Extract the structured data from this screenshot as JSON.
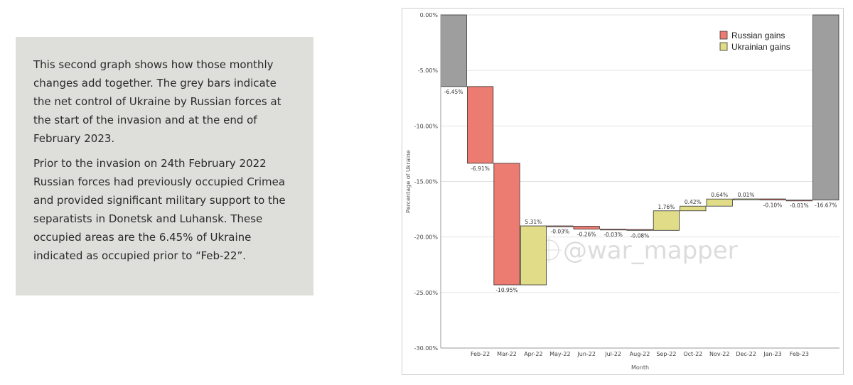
{
  "description": {
    "paragraph1": "This second graph shows how those monthly changes add together. The grey bars indicate the net control of Ukraine by Russian forces at the start of the invasion and at the end of February 2023.",
    "paragraph2": "Prior to the invasion on 24th February 2022 Russian forces had previously occupied Crimea and provided significant military support to the separatists in Donetsk and Luhansk. These occupied areas are the 6.45% of Ukraine indicated as occupied prior to “Feb-22”."
  },
  "chart_data": {
    "type": "bar",
    "subtype": "waterfall",
    "xlabel": "Month",
    "ylabel": "Percentage of Ukraine",
    "ylim": [
      -30,
      0
    ],
    "yticks": [
      "0.00%",
      "-5.00%",
      "-10.00%",
      "-15.00%",
      "-20.00%",
      "-25.00%",
      "-30.00%"
    ],
    "grid": true,
    "legend": {
      "placement": "top-right",
      "entries": [
        {
          "name": "Russian gains",
          "color": "#ec7b71"
        },
        {
          "name": "Ukrainian gains",
          "color": "#e0dc87"
        }
      ]
    },
    "watermark": "@war_mapper",
    "categories": [
      "",
      "Feb-22",
      "Mar-22",
      "Apr-22",
      "May-22",
      "Jun-22",
      "Jul-22",
      "Aug-22",
      "Sep-22",
      "Oct-22",
      "Nov-22",
      "Dec-22",
      "Jan-23",
      "Feb-23",
      ""
    ],
    "bars": [
      {
        "category": "",
        "kind": "total",
        "start": 0,
        "end": -6.45,
        "label": "-6.45%"
      },
      {
        "category": "Feb-22",
        "kind": "russian",
        "start": -6.45,
        "end": -13.36,
        "label": "-6.91%"
      },
      {
        "category": "Mar-22",
        "kind": "russian",
        "start": -13.36,
        "end": -24.31,
        "label": "-10.95%"
      },
      {
        "category": "Apr-22",
        "kind": "ukrainian",
        "start": -24.31,
        "end": -19.0,
        "label": "5.31%"
      },
      {
        "category": "May-22",
        "kind": "russian",
        "start": -19.0,
        "end": -19.03,
        "label": "-0.03%"
      },
      {
        "category": "Jun-22",
        "kind": "russian",
        "start": -19.03,
        "end": -19.29,
        "label": "-0.26%"
      },
      {
        "category": "Jul-22",
        "kind": "russian",
        "start": -19.29,
        "end": -19.32,
        "label": "-0.03%"
      },
      {
        "category": "Aug-22",
        "kind": "russian",
        "start": -19.32,
        "end": -19.4,
        "label": "-0.08%"
      },
      {
        "category": "Sep-22",
        "kind": "ukrainian",
        "start": -19.4,
        "end": -17.64,
        "label": "1.76%"
      },
      {
        "category": "Oct-22",
        "kind": "ukrainian",
        "start": -17.64,
        "end": -17.22,
        "label": "0.42%"
      },
      {
        "category": "Nov-22",
        "kind": "ukrainian",
        "start": -17.22,
        "end": -16.58,
        "label": "0.64%"
      },
      {
        "category": "Dec-22",
        "kind": "ukrainian",
        "start": -16.58,
        "end": -16.57,
        "label": "0.01%"
      },
      {
        "category": "Jan-23",
        "kind": "russian",
        "start": -16.57,
        "end": -16.67,
        "label": "-0.10%"
      },
      {
        "category": "Feb-23",
        "kind": "russian",
        "start": -16.67,
        "end": -16.68,
        "label": "-0.01%"
      },
      {
        "category": "",
        "kind": "total",
        "start": 0,
        "end": -16.67,
        "label": "-16.67%"
      }
    ],
    "colors": {
      "total": "#9e9e9e",
      "russian": "#ec7b71",
      "ukrainian": "#e0dc87",
      "grid": "#e3e3e3"
    }
  }
}
